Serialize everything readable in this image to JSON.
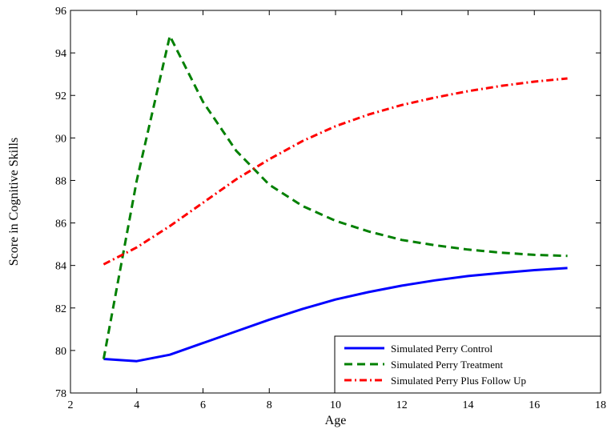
{
  "chart_data": {
    "type": "line",
    "title": "",
    "xlabel": "Age",
    "ylabel": "Score in Cognitive Skills",
    "xlim": [
      2,
      18
    ],
    "ylim": [
      78,
      96
    ],
    "xticks": [
      2,
      4,
      6,
      8,
      10,
      12,
      14,
      16,
      18
    ],
    "yticks": [
      78,
      80,
      82,
      84,
      86,
      88,
      90,
      92,
      94,
      96
    ],
    "grid": false,
    "legend_position": "bottom-right",
    "x": [
      3,
      4,
      5,
      6,
      7,
      8,
      9,
      10,
      11,
      12,
      13,
      14,
      15,
      16,
      17
    ],
    "series": [
      {
        "name": "Simulated Perry Control",
        "color": "#0000ff",
        "style": "solid",
        "values": [
          79.6,
          79.5,
          79.8,
          80.35,
          80.9,
          81.45,
          81.95,
          82.4,
          82.75,
          83.05,
          83.3,
          83.5,
          83.65,
          83.78,
          83.88
        ]
      },
      {
        "name": "Simulated Perry Treatment",
        "color": "#008000",
        "style": "dashed",
        "values": [
          79.6,
          88.0,
          94.8,
          91.7,
          89.4,
          87.8,
          86.8,
          86.1,
          85.6,
          85.2,
          84.95,
          84.75,
          84.6,
          84.5,
          84.45
        ]
      },
      {
        "name": "Simulated Perry Plus Follow Up",
        "color": "#ff0000",
        "style": "dashdot",
        "values": [
          84.05,
          84.85,
          85.85,
          86.95,
          88.05,
          89.0,
          89.85,
          90.55,
          91.1,
          91.55,
          91.9,
          92.2,
          92.45,
          92.65,
          92.8
        ]
      }
    ]
  }
}
